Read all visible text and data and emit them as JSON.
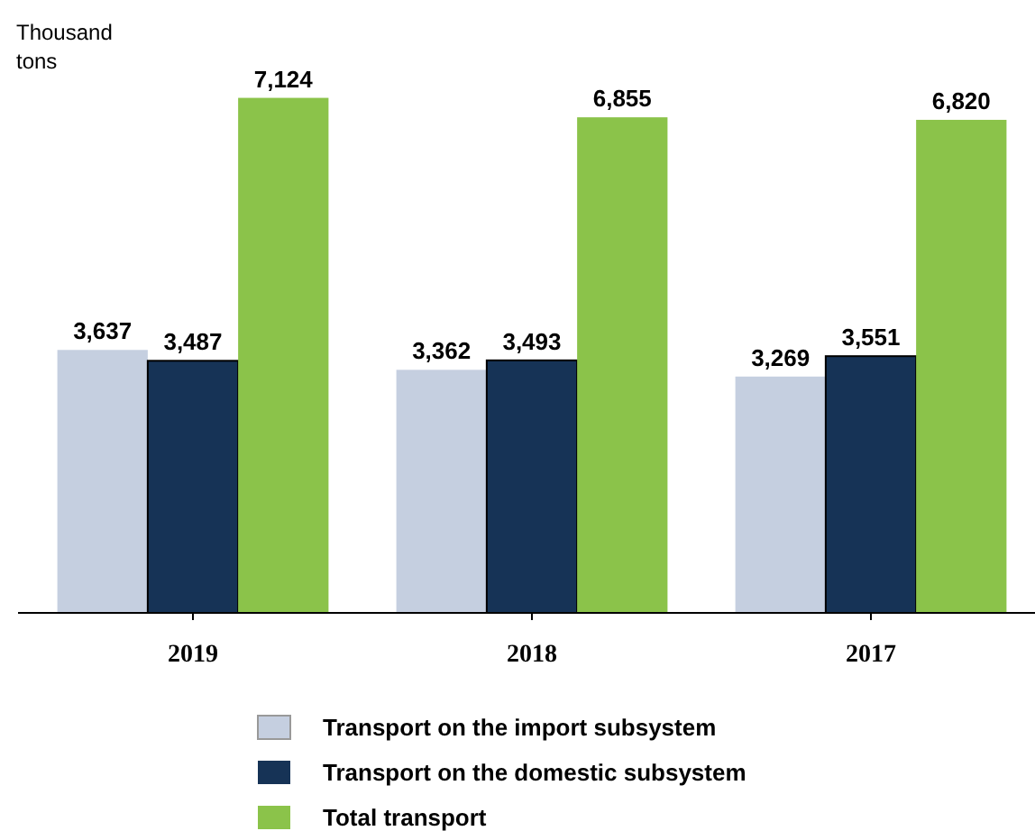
{
  "chart_data": {
    "type": "bar",
    "ylabel": "Thousand tons",
    "categories": [
      "2019",
      "2018",
      "2017"
    ],
    "series": [
      {
        "name": "Transport on the import subsystem",
        "color": "#c5cfe0",
        "values": [
          3637,
          3362,
          3269
        ],
        "value_labels": [
          "3,637",
          "3,362",
          "3,269"
        ]
      },
      {
        "name": "Transport on the domestic subsystem",
        "color": "#163356",
        "values": [
          3487,
          3493,
          3551
        ],
        "value_labels": [
          "3,487",
          "3,493",
          "3,551"
        ]
      },
      {
        "name": "Total transport",
        "color": "#8bc34a",
        "values": [
          7124,
          6855,
          6820
        ],
        "value_labels": [
          "7,124",
          "6,855",
          "6,820"
        ]
      }
    ],
    "legend": "bottom",
    "tick_labels": "x"
  }
}
